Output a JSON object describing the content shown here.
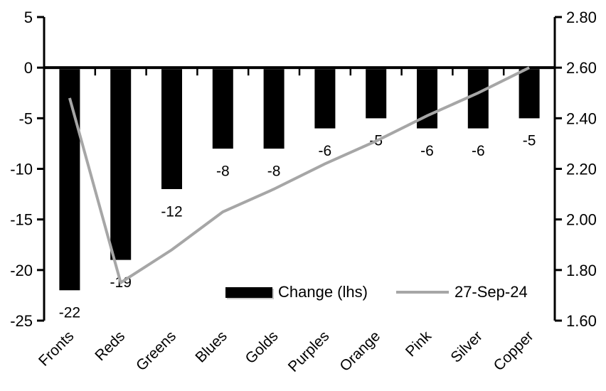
{
  "chart_data": {
    "type": "bar",
    "title": "",
    "categories": [
      "Fronts",
      "Reds",
      "Greens",
      "Blues",
      "Golds",
      "Purples",
      "Orange",
      "Pink",
      "Silver",
      "Copper"
    ],
    "series": [
      {
        "name": "Change (lhs)",
        "type": "bar",
        "axis": "left",
        "color": "#000000",
        "values": [
          -22,
          -19,
          -12,
          -8,
          -8,
          -6,
          -5,
          -6,
          -6,
          -5
        ],
        "data_labels": [
          "-22",
          "-19",
          "-12",
          "-8",
          "-8",
          "-6",
          "-5",
          "-6",
          "-6",
          "-5"
        ]
      },
      {
        "name": "27-Sep-24",
        "type": "line",
        "axis": "right",
        "color": "#a6a6a6",
        "values": [
          2.48,
          1.75,
          1.88,
          2.03,
          2.12,
          2.22,
          2.31,
          2.41,
          2.5,
          2.6
        ]
      }
    ],
    "left_axis": {
      "min": -25,
      "max": 5,
      "tick_step": 5,
      "tick_labels": [
        "5",
        "0",
        "-5",
        "-10",
        "-15",
        "-20",
        "-25"
      ]
    },
    "right_axis": {
      "min": 1.6,
      "max": 2.8,
      "tick_step": 0.2,
      "tick_labels": [
        "2.80",
        "2.60",
        "2.40",
        "2.20",
        "2.00",
        "1.80",
        "1.60"
      ]
    },
    "legend": {
      "position": "bottom-inside",
      "items": [
        {
          "label": "Change (lhs)",
          "swatch": "bar",
          "color": "#000000"
        },
        {
          "label": "27-Sep-24",
          "swatch": "line",
          "color": "#a6a6a6"
        }
      ]
    },
    "grid": false,
    "colors": {
      "axis": "#000000",
      "text": "#000000",
      "background": "#ffffff"
    }
  }
}
